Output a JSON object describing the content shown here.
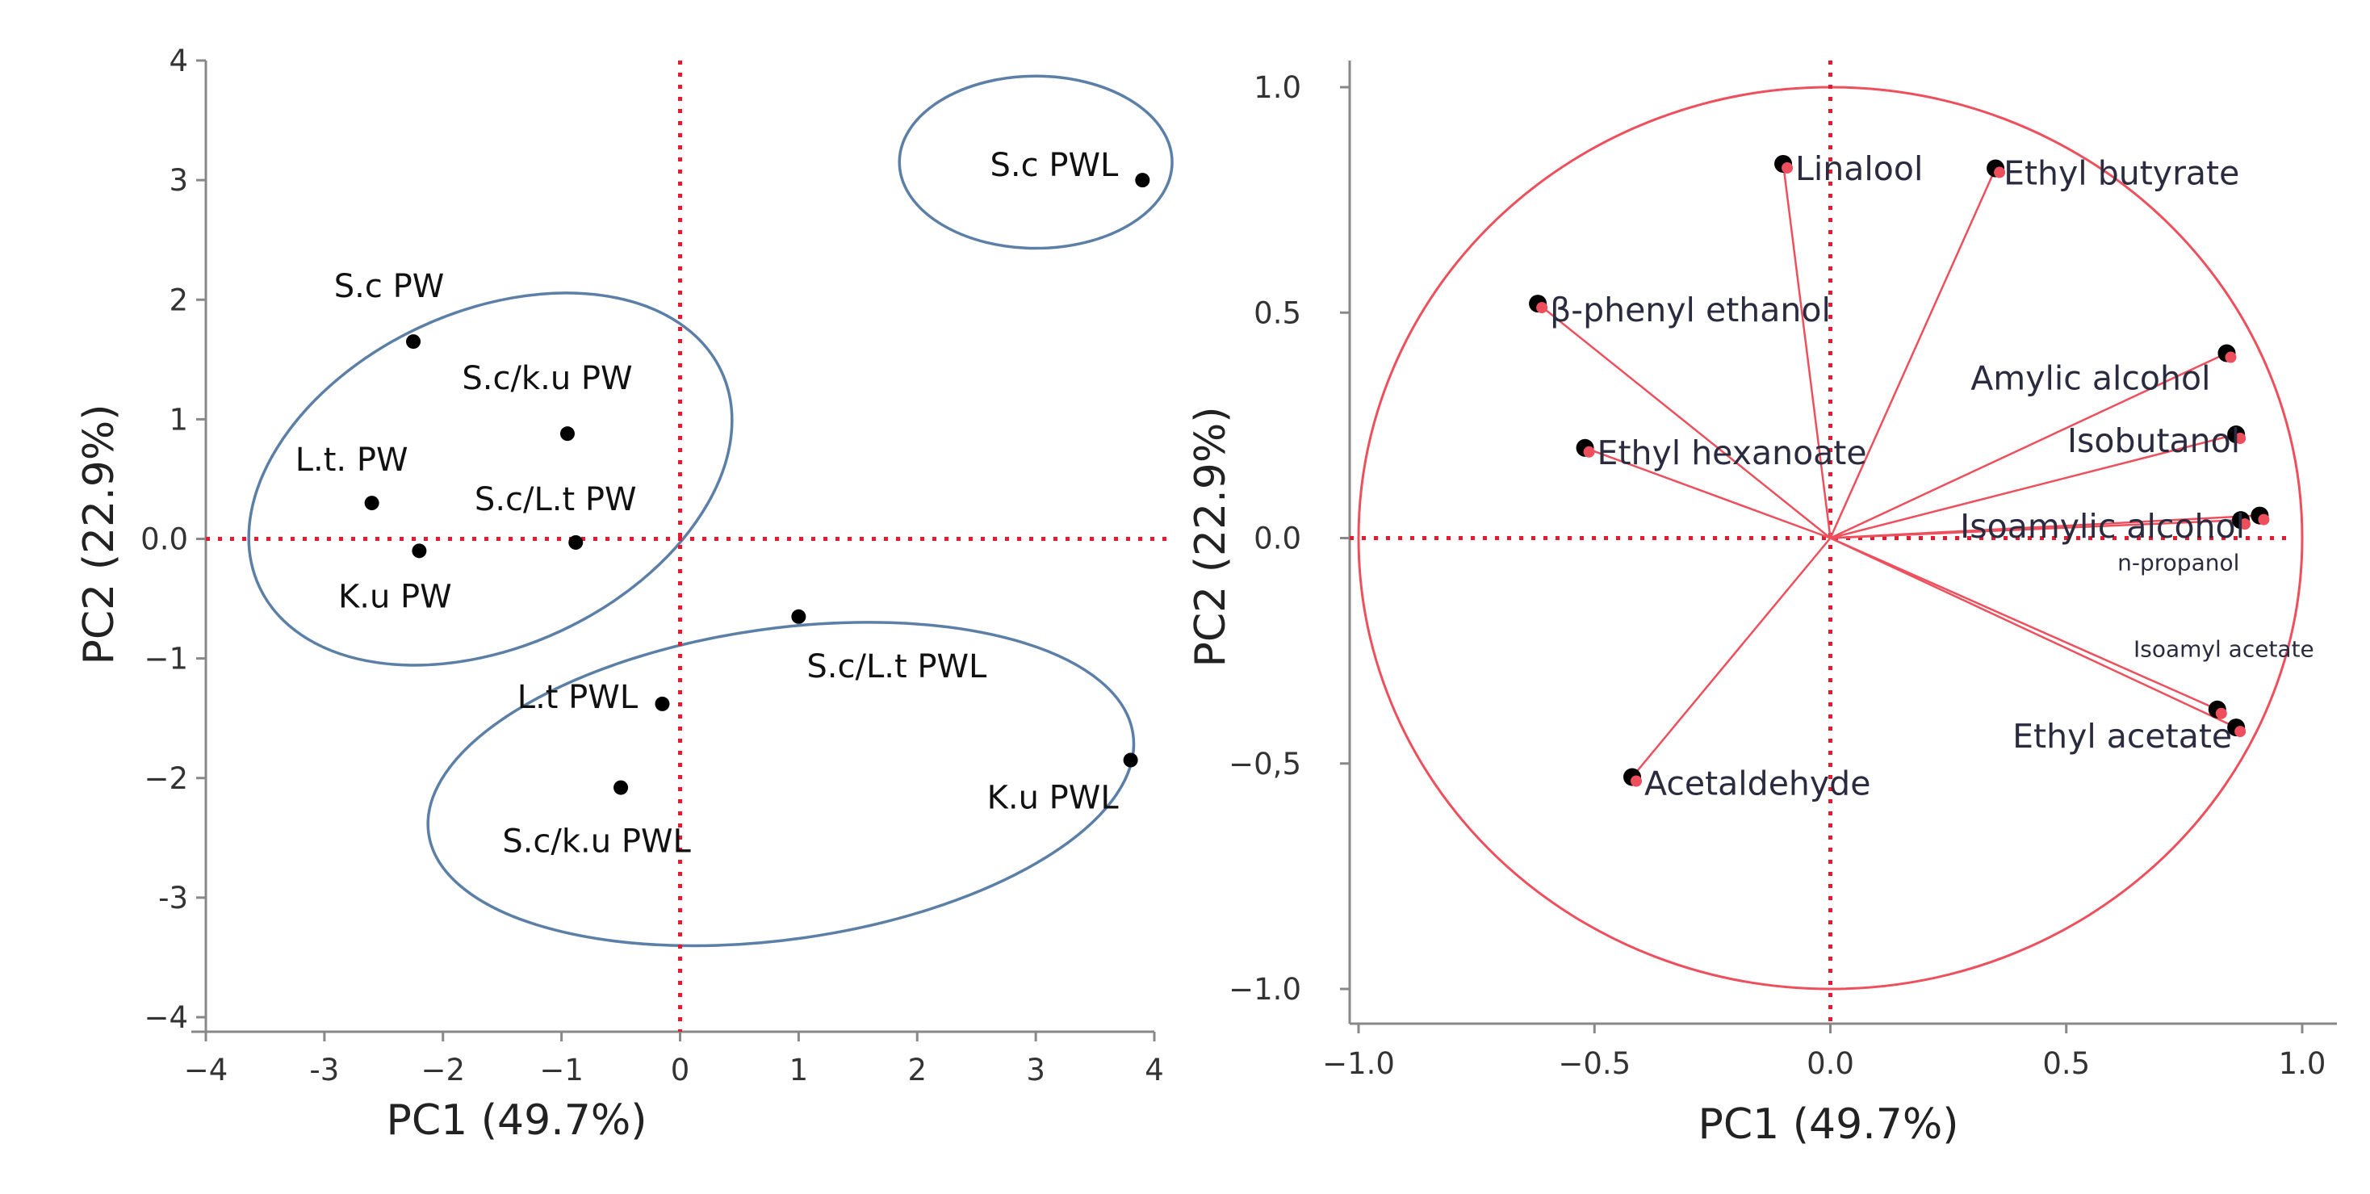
{
  "chart_data": [
    {
      "type": "scatter",
      "title": "",
      "xlabel": "PC1 (49.7%)",
      "ylabel": "PC2 (22.9%)",
      "xlim": [
        -4,
        4
      ],
      "ylim": [
        -4,
        4
      ],
      "x_ticks": [
        -4,
        -3,
        -2,
        -1,
        0,
        1,
        2,
        3,
        4
      ],
      "y_ticks": [
        -4,
        -3,
        -2,
        -1,
        0,
        1,
        2,
        3,
        4
      ],
      "x_tick_labels": [
        "−4",
        "-3",
        "−2",
        "−1",
        "0",
        "1",
        "2",
        "3",
        "4"
      ],
      "y_tick_labels": [
        "−4",
        "-3",
        "−2",
        "−1",
        "0.0",
        "1",
        "2",
        "3",
        "4"
      ],
      "points": [
        {
          "label": "S.c PWL",
          "x": 3.9,
          "y": 3.0
        },
        {
          "label": "S.c PW",
          "x": -2.25,
          "y": 1.65
        },
        {
          "label": "S.c/k.u PW",
          "x": -0.95,
          "y": 0.88
        },
        {
          "label": "L.t. PW",
          "x": -2.6,
          "y": 0.3
        },
        {
          "label": "S.c/L.t PW",
          "x": -0.88,
          "y": -0.03
        },
        {
          "label": "K.u PW",
          "x": -2.2,
          "y": -0.1
        },
        {
          "label": "S.c/L.t PWL",
          "x": 1.0,
          "y": -0.65
        },
        {
          "label": "L.t PWL",
          "x": -0.15,
          "y": -1.38
        },
        {
          "label": "K.u PWL",
          "x": 3.8,
          "y": -1.85
        },
        {
          "label": "S.c/k.u PWL",
          "x": -0.5,
          "y": -2.08
        }
      ],
      "groups": [
        {
          "name": "S.c PWL",
          "members": [
            "S.c PWL"
          ]
        },
        {
          "name": "PW",
          "members": [
            "S.c PW",
            "S.c/k.u PW",
            "L.t. PW",
            "S.c/L.t PW",
            "K.u PW"
          ]
        },
        {
          "name": "PWL",
          "members": [
            "S.c/L.t PWL",
            "L.t PWL",
            "K.u PWL",
            "S.c/k.u PWL"
          ]
        }
      ],
      "reference_lines": {
        "x": 0,
        "y": 0
      },
      "colors": {
        "points": "#000000",
        "ellipses": "#5b7fa6",
        "reference": "#e8182e",
        "axis": "#888888"
      }
    },
    {
      "type": "scatter",
      "subtype": "loading-plot",
      "title": "",
      "xlabel": "PC1 (49.7%)",
      "ylabel": "PC2 (22.9%)",
      "xlim": [
        -1.0,
        1.0
      ],
      "ylim": [
        -1.0,
        1.0
      ],
      "x_ticks": [
        -1.0,
        -0.5,
        0.0,
        0.5,
        1.0
      ],
      "y_ticks": [
        -1.0,
        -0.5,
        0.0,
        0.5,
        1.0
      ],
      "x_tick_labels": [
        "−1.0",
        "−0.5",
        "0.0",
        "0.5",
        "1.0"
      ],
      "y_tick_labels": [
        "−1.0",
        "−0,5",
        "0.0",
        "0.5",
        "1.0"
      ],
      "loadings": [
        {
          "label": "Linalool",
          "x": -0.1,
          "y": 0.83
        },
        {
          "label": "Ethyl butyrate",
          "x": 0.35,
          "y": 0.82
        },
        {
          "label": "β-phenyl ethanol",
          "x": -0.62,
          "y": 0.52
        },
        {
          "label": "Amylic alcohol",
          "x": 0.84,
          "y": 0.41
        },
        {
          "label": "Isobutanol",
          "x": 0.86,
          "y": 0.23
        },
        {
          "label": "Ethyl hexanoate",
          "x": -0.52,
          "y": 0.2
        },
        {
          "label": "Isoamylic alcohol",
          "x": 0.87,
          "y": 0.04
        },
        {
          "label": "n-propanol",
          "x": 0.91,
          "y": 0.05
        },
        {
          "label": "Isoamyl acetate",
          "x": 0.82,
          "y": -0.38
        },
        {
          "label": "Ethyl acetate",
          "x": 0.86,
          "y": -0.42
        },
        {
          "label": "Acetaldehyde",
          "x": -0.42,
          "y": -0.53
        }
      ],
      "unit_circle": true,
      "reference_lines": {
        "x": 0,
        "y": 0
      },
      "colors": {
        "vectors": "#ee4f5c",
        "points": "#000000",
        "circle": "#ee4f5c",
        "reference": "#e8182e",
        "axis": "#888888"
      }
    }
  ]
}
